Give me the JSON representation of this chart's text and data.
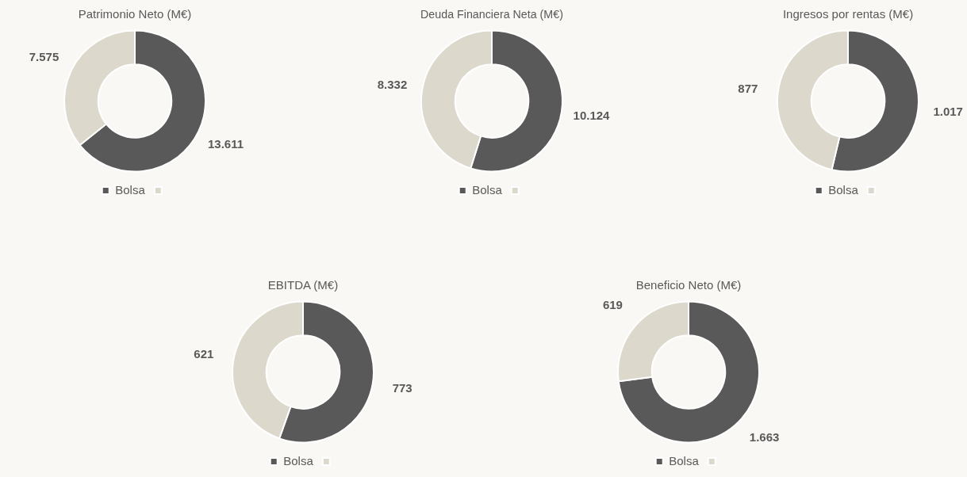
{
  "chart_data": [
    {
      "type": "donut",
      "title": "Patrimonio Neto (M€)",
      "categories": [
        "Bolsa",
        null
      ],
      "values": [
        13611,
        7575
      ],
      "value_labels": [
        "13.611",
        "7.575"
      ],
      "colors": [
        "#595959",
        "#ddd8cc"
      ],
      "legend": "bottom"
    },
    {
      "type": "donut",
      "title": "Deuda Financiera Neta (M€)",
      "categories": [
        "Bolsa",
        null
      ],
      "values": [
        10124,
        8332
      ],
      "value_labels": [
        "10.124",
        "8.332"
      ],
      "colors": [
        "#595959",
        "#ddd8cc"
      ],
      "legend": "bottom"
    },
    {
      "type": "donut",
      "title": "Ingresos por rentas (M€)",
      "categories": [
        "Bolsa",
        null
      ],
      "values": [
        1017,
        877
      ],
      "value_labels": [
        "1.017",
        "877"
      ],
      "colors": [
        "#595959",
        "#ddd8cc"
      ],
      "legend": "bottom"
    },
    {
      "type": "donut",
      "title": "EBITDA (M€)",
      "categories": [
        "Bolsa",
        null
      ],
      "values": [
        773,
        621
      ],
      "value_labels": [
        "773",
        "621"
      ],
      "colors": [
        "#595959",
        "#ddd8cc"
      ],
      "legend": "bottom"
    },
    {
      "type": "donut",
      "title": "Beneficio Neto (M€)",
      "categories": [
        "Bolsa",
        null
      ],
      "values": [
        1663,
        619
      ],
      "value_labels": [
        "1.663",
        "619"
      ],
      "colors": [
        "#595959",
        "#ddd8cc"
      ],
      "legend": "bottom"
    }
  ]
}
